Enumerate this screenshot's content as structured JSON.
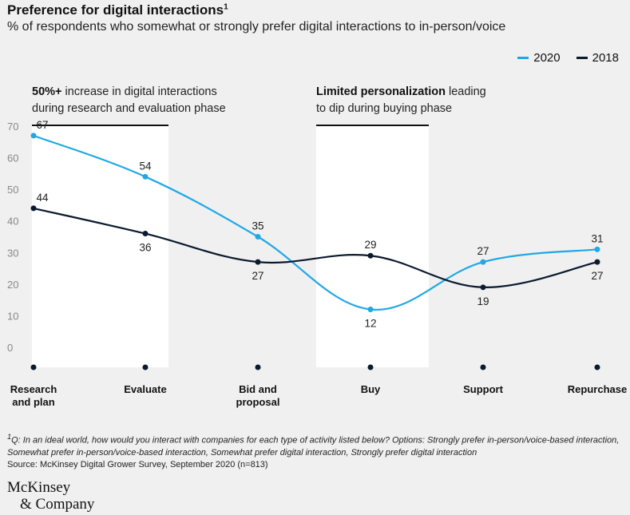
{
  "header": {
    "title": "Preference for digital interactions",
    "title_sup": "1",
    "subtitle": "% of respondents who somewhat or strongly prefer digital interactions to in-person/voice"
  },
  "annotations": [
    {
      "bold": "50%+",
      "rest": " increase in digital interactions",
      "line2": "during research and evaluation phase"
    },
    {
      "bold": "Limited personalization",
      "rest": " leading",
      "line2": "to dip during buying phase"
    }
  ],
  "colors": {
    "series_2020": "#1fa8e6",
    "series_2018": "#0b1a2e",
    "highlight": "#ffffff",
    "background": "#f0f0f0"
  },
  "chart_data": {
    "type": "line",
    "categories": [
      "Research\nand plan",
      "Evaluate",
      "Bid and\nproposal",
      "Buy",
      "Support",
      "Repurchase"
    ],
    "series": [
      {
        "name": "2020",
        "values": [
          67,
          54,
          35,
          12,
          27,
          31
        ]
      },
      {
        "name": "2018",
        "values": [
          44,
          36,
          27,
          29,
          19,
          27
        ]
      }
    ],
    "ylim": [
      0,
      70
    ],
    "yticks": [
      0,
      10,
      20,
      30,
      40,
      50,
      60,
      70
    ],
    "legend_position": "top-right",
    "grid": false
  },
  "footnote": {
    "sup": "1",
    "question": "Q: In an ideal world, how would you interact with companies for each type of activity listed below? Options: Strongly prefer in-person/voice-based interaction, Somewhat prefer in-person/voice-based interaction, Somewhat prefer digital interaction, Strongly prefer digital interaction",
    "source": "Source: McKinsey Digital Grower Survey, September 2020 (n=813)"
  },
  "logo": {
    "line1": "McKinsey",
    "line2": "& Company"
  }
}
